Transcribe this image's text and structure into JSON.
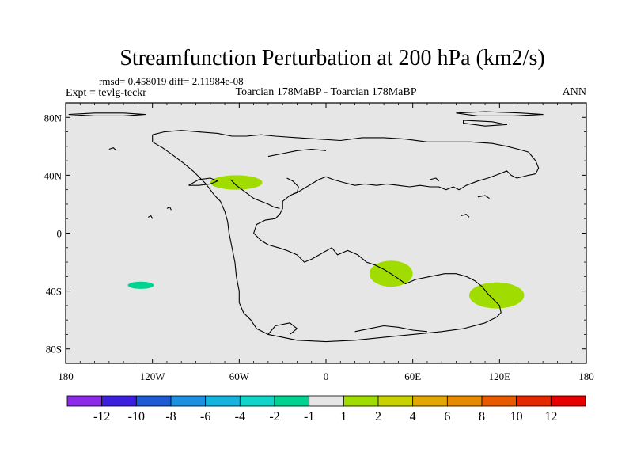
{
  "title": "Streamfunction Perturbation at 200 hPa (km2/s)",
  "stats": "rmsd= 0.458019 diff= 2.11984e-08",
  "left_label": "Expt = tevlg-teckr",
  "center_label": "Toarcian 178MaBP - Toarcian 178MaBP",
  "right_label": "ANN",
  "chart_data": {
    "type": "heatmap",
    "projection": "cylindrical-equidistant",
    "xlim": [
      -180,
      180
    ],
    "ylim": [
      -90,
      90
    ],
    "x_ticks": [
      {
        "value": -180,
        "label": "180"
      },
      {
        "value": -120,
        "label": "120W"
      },
      {
        "value": -60,
        "label": "60W"
      },
      {
        "value": 0,
        "label": "0"
      },
      {
        "value": 60,
        "label": "60E"
      },
      {
        "value": 120,
        "label": "120E"
      },
      {
        "value": 180,
        "label": "180"
      }
    ],
    "y_ticks": [
      {
        "value": 80,
        "label": "80N"
      },
      {
        "value": 40,
        "label": "40N"
      },
      {
        "value": 0,
        "label": "0"
      },
      {
        "value": -40,
        "label": "40S"
      },
      {
        "value": -80,
        "label": "80S"
      }
    ],
    "background_color": "#e6e6e6",
    "anomalies": [
      {
        "lon": -62,
        "lat": 35,
        "dlon": 18,
        "dlat": 5,
        "value": 1.5,
        "color": "#a0dc00"
      },
      {
        "lon": 45,
        "lat": -28,
        "dlon": 15,
        "dlat": 9,
        "value": 1.5,
        "color": "#a0dc00"
      },
      {
        "lon": 118,
        "lat": -43,
        "dlon": 19,
        "dlat": 9,
        "value": 1.5,
        "color": "#a0dc00"
      },
      {
        "lon": -128,
        "lat": -36,
        "dlon": 9,
        "dlat": 2.5,
        "value": -1.5,
        "color": "#00d290"
      }
    ],
    "coastlines": [
      {
        "name": "pangaea",
        "points": [
          [
            -120,
            68
          ],
          [
            -112,
            70
          ],
          [
            -100,
            71
          ],
          [
            -88,
            70
          ],
          [
            -75,
            69
          ],
          [
            -65,
            67
          ],
          [
            -55,
            67
          ],
          [
            -45,
            68
          ],
          [
            -35,
            67
          ],
          [
            -20,
            66
          ],
          [
            -5,
            65
          ],
          [
            10,
            64
          ],
          [
            25,
            66
          ],
          [
            40,
            66
          ],
          [
            55,
            65
          ],
          [
            70,
            63
          ],
          [
            85,
            63
          ],
          [
            100,
            63
          ],
          [
            115,
            62
          ],
          [
            125,
            60
          ],
          [
            133,
            58
          ],
          [
            140,
            56
          ],
          [
            145,
            50
          ],
          [
            147,
            45
          ],
          [
            145,
            41
          ],
          [
            140,
            40
          ],
          [
            132,
            38
          ],
          [
            128,
            40
          ],
          [
            125,
            43
          ],
          [
            120,
            41
          ],
          [
            112,
            38
          ],
          [
            105,
            36
          ],
          [
            97,
            33
          ],
          [
            92,
            30
          ],
          [
            88,
            32
          ],
          [
            83,
            30
          ],
          [
            78,
            32
          ],
          [
            72,
            32
          ],
          [
            65,
            33
          ],
          [
            58,
            32
          ],
          [
            50,
            33
          ],
          [
            42,
            34
          ],
          [
            35,
            33
          ],
          [
            27,
            34
          ],
          [
            20,
            33
          ],
          [
            12,
            35
          ],
          [
            5,
            37
          ],
          [
            0,
            39
          ],
          [
            -5,
            37
          ],
          [
            -10,
            34
          ],
          [
            -15,
            31
          ],
          [
            -20,
            28
          ],
          [
            -25,
            26
          ],
          [
            -30,
            22
          ],
          [
            -30,
            17
          ],
          [
            -32,
            13
          ],
          [
            -35,
            10
          ],
          [
            -42,
            9
          ],
          [
            -48,
            6
          ],
          [
            -50,
            0
          ],
          [
            -45,
            -5
          ],
          [
            -40,
            -8
          ],
          [
            -33,
            -10
          ],
          [
            -27,
            -12
          ],
          [
            -20,
            -15
          ],
          [
            -15,
            -20
          ],
          [
            -10,
            -18
          ],
          [
            -3,
            -14
          ],
          [
            4,
            -10
          ],
          [
            8,
            -15
          ],
          [
            15,
            -12
          ],
          [
            22,
            -15
          ],
          [
            28,
            -20
          ],
          [
            34,
            -22
          ],
          [
            40,
            -25
          ],
          [
            48,
            -30
          ],
          [
            55,
            -35
          ],
          [
            62,
            -32
          ],
          [
            72,
            -30
          ],
          [
            82,
            -28
          ],
          [
            90,
            -28
          ],
          [
            97,
            -30
          ],
          [
            103,
            -33
          ],
          [
            108,
            -37
          ],
          [
            112,
            -42
          ],
          [
            116,
            -46
          ],
          [
            120,
            -50
          ],
          [
            121,
            -55
          ],
          [
            118,
            -58
          ],
          [
            110,
            -62
          ],
          [
            95,
            -66
          ],
          [
            80,
            -68
          ],
          [
            60,
            -70
          ],
          [
            40,
            -72
          ],
          [
            20,
            -74
          ],
          [
            0,
            -75
          ],
          [
            -20,
            -74
          ],
          [
            -30,
            -72
          ],
          [
            -40,
            -70
          ],
          [
            -48,
            -66
          ],
          [
            -52,
            -60
          ],
          [
            -57,
            -55
          ],
          [
            -60,
            -48
          ],
          [
            -60,
            -40
          ],
          [
            -62,
            -30
          ],
          [
            -63,
            -20
          ],
          [
            -65,
            -10
          ],
          [
            -67,
            0
          ],
          [
            -68,
            8
          ],
          [
            -70,
            15
          ],
          [
            -73,
            22
          ],
          [
            -77,
            26
          ],
          [
            -80,
            30
          ],
          [
            -83,
            34
          ],
          [
            -87,
            38
          ],
          [
            -92,
            43
          ],
          [
            -98,
            48
          ],
          [
            -106,
            54
          ],
          [
            -113,
            59
          ],
          [
            -120,
            63
          ],
          [
            -120,
            68
          ]
        ]
      },
      {
        "name": "interior-sea-line",
        "points": [
          [
            -66,
            37
          ],
          [
            -62,
            33
          ],
          [
            -58,
            30
          ],
          [
            -54,
            27
          ],
          [
            -50,
            24
          ],
          [
            -45,
            22
          ],
          [
            -40,
            20
          ],
          [
            -36,
            18
          ],
          [
            -32,
            17
          ]
        ]
      },
      {
        "name": "interior-lake-line",
        "points": [
          [
            -27,
            38
          ],
          [
            -23,
            36
          ],
          [
            -19,
            32
          ],
          [
            -20,
            28
          ],
          [
            -23,
            27
          ]
        ]
      },
      {
        "name": "north-channel",
        "points": [
          [
            -40,
            53
          ],
          [
            -30,
            55
          ],
          [
            -20,
            57
          ],
          [
            -10,
            58
          ],
          [
            0,
            57
          ]
        ]
      },
      {
        "name": "west-peninsula",
        "points": [
          [
            -95,
            33
          ],
          [
            -88,
            37
          ],
          [
            -80,
            38
          ],
          [
            -75,
            36
          ],
          [
            -80,
            34
          ],
          [
            -88,
            33
          ],
          [
            -95,
            33
          ]
        ]
      },
      {
        "name": "arctic-island-west",
        "points": [
          [
            -178,
            82
          ],
          [
            -160,
            83
          ],
          [
            -140,
            83
          ],
          [
            -125,
            82
          ],
          [
            -140,
            81
          ],
          [
            -160,
            81
          ],
          [
            -178,
            82
          ]
        ]
      },
      {
        "name": "arctic-island-east",
        "points": [
          [
            90,
            83
          ],
          [
            110,
            84
          ],
          [
            135,
            83
          ],
          [
            150,
            82
          ],
          [
            130,
            81
          ],
          [
            105,
            81
          ],
          [
            90,
            83
          ]
        ]
      },
      {
        "name": "north-island-east",
        "points": [
          [
            95,
            78
          ],
          [
            115,
            77
          ],
          [
            125,
            75
          ],
          [
            110,
            74
          ],
          [
            95,
            76
          ],
          [
            95,
            78
          ]
        ]
      },
      {
        "name": "south-continent-inlet",
        "points": [
          [
            20,
            -68
          ],
          [
            30,
            -66
          ],
          [
            40,
            -64
          ],
          [
            50,
            -65
          ],
          [
            60,
            -67
          ],
          [
            70,
            -68
          ]
        ]
      },
      {
        "name": "antarctic-fragment",
        "points": [
          [
            -40,
            -70
          ],
          [
            -35,
            -64
          ],
          [
            -25,
            -62
          ],
          [
            -20,
            -66
          ],
          [
            -25,
            -70
          ]
        ]
      },
      {
        "name": "ocean-islet-1",
        "points": [
          [
            -123,
            11
          ],
          [
            -121,
            12
          ],
          [
            -120,
            10
          ]
        ]
      },
      {
        "name": "ocean-islet-2",
        "points": [
          [
            -110,
            17
          ],
          [
            -108,
            18
          ],
          [
            -107,
            16
          ]
        ]
      },
      {
        "name": "ocean-islet-3",
        "points": [
          [
            -150,
            58
          ],
          [
            -147,
            59
          ],
          [
            -145,
            57
          ]
        ]
      },
      {
        "name": "tethys-islet-1",
        "points": [
          [
            72,
            37
          ],
          [
            76,
            38
          ],
          [
            78,
            36
          ]
        ]
      },
      {
        "name": "tethys-islet-2",
        "points": [
          [
            105,
            25
          ],
          [
            110,
            26
          ],
          [
            113,
            24
          ]
        ]
      },
      {
        "name": "tethys-islet-3",
        "points": [
          [
            93,
            12
          ],
          [
            97,
            13
          ],
          [
            99,
            11
          ]
        ]
      }
    ]
  },
  "colorbar": {
    "colors": [
      "#8c2ae6",
      "#3c1ede",
      "#1e5ad2",
      "#1e90e0",
      "#14b4dc",
      "#10d4c8",
      "#00d290",
      "#e6e6e6",
      "#a0dc00",
      "#c8d200",
      "#e0a800",
      "#e68a00",
      "#e65a00",
      "#e62800",
      "#e60000"
    ],
    "labels": [
      "-12",
      "-10",
      "-8",
      "-6",
      "-4",
      "-2",
      "-1",
      "1",
      "2",
      "4",
      "6",
      "8",
      "10",
      "12"
    ]
  }
}
